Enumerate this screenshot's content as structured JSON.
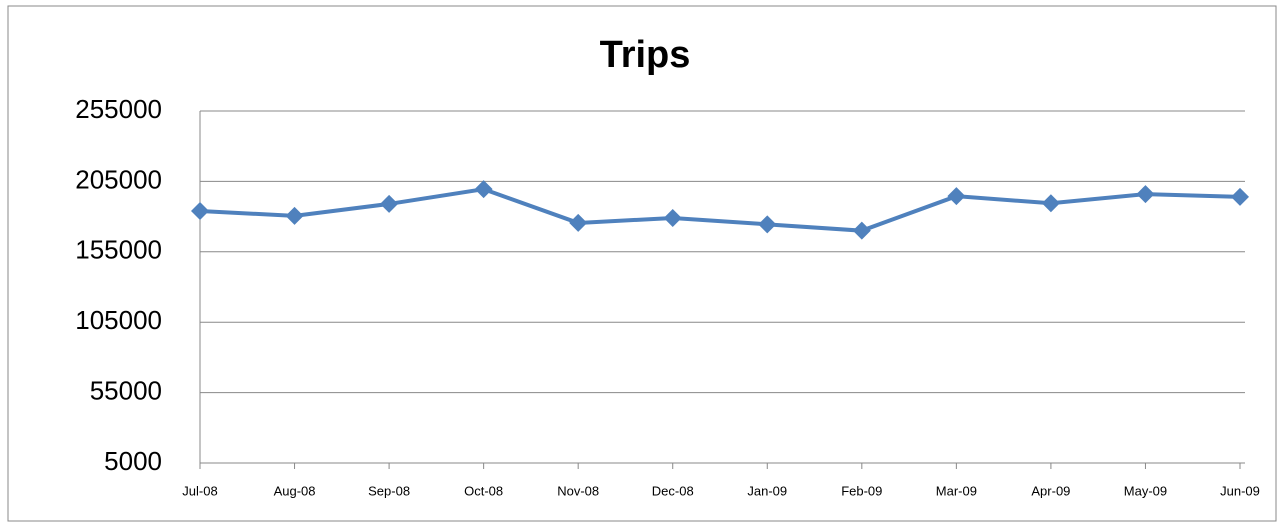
{
  "chart_data": {
    "type": "line",
    "title": "Trips",
    "categories": [
      "Jul-08",
      "Aug-08",
      "Sep-08",
      "Oct-08",
      "Nov-08",
      "Dec-08",
      "Jan-09",
      "Feb-09",
      "Mar-09",
      "Apr-09",
      "May-09",
      "Jun-09"
    ],
    "series": [
      {
        "name": "Trips",
        "color": "#4f81bd",
        "values": [
          184000,
          180500,
          189000,
          199500,
          175500,
          179000,
          174500,
          170000,
          194500,
          189500,
          196000,
          194000
        ]
      }
    ],
    "ylim": [
      5000,
      255000
    ],
    "yticks": [
      5000,
      55000,
      105000,
      155000,
      205000,
      255000
    ],
    "grid": true
  }
}
